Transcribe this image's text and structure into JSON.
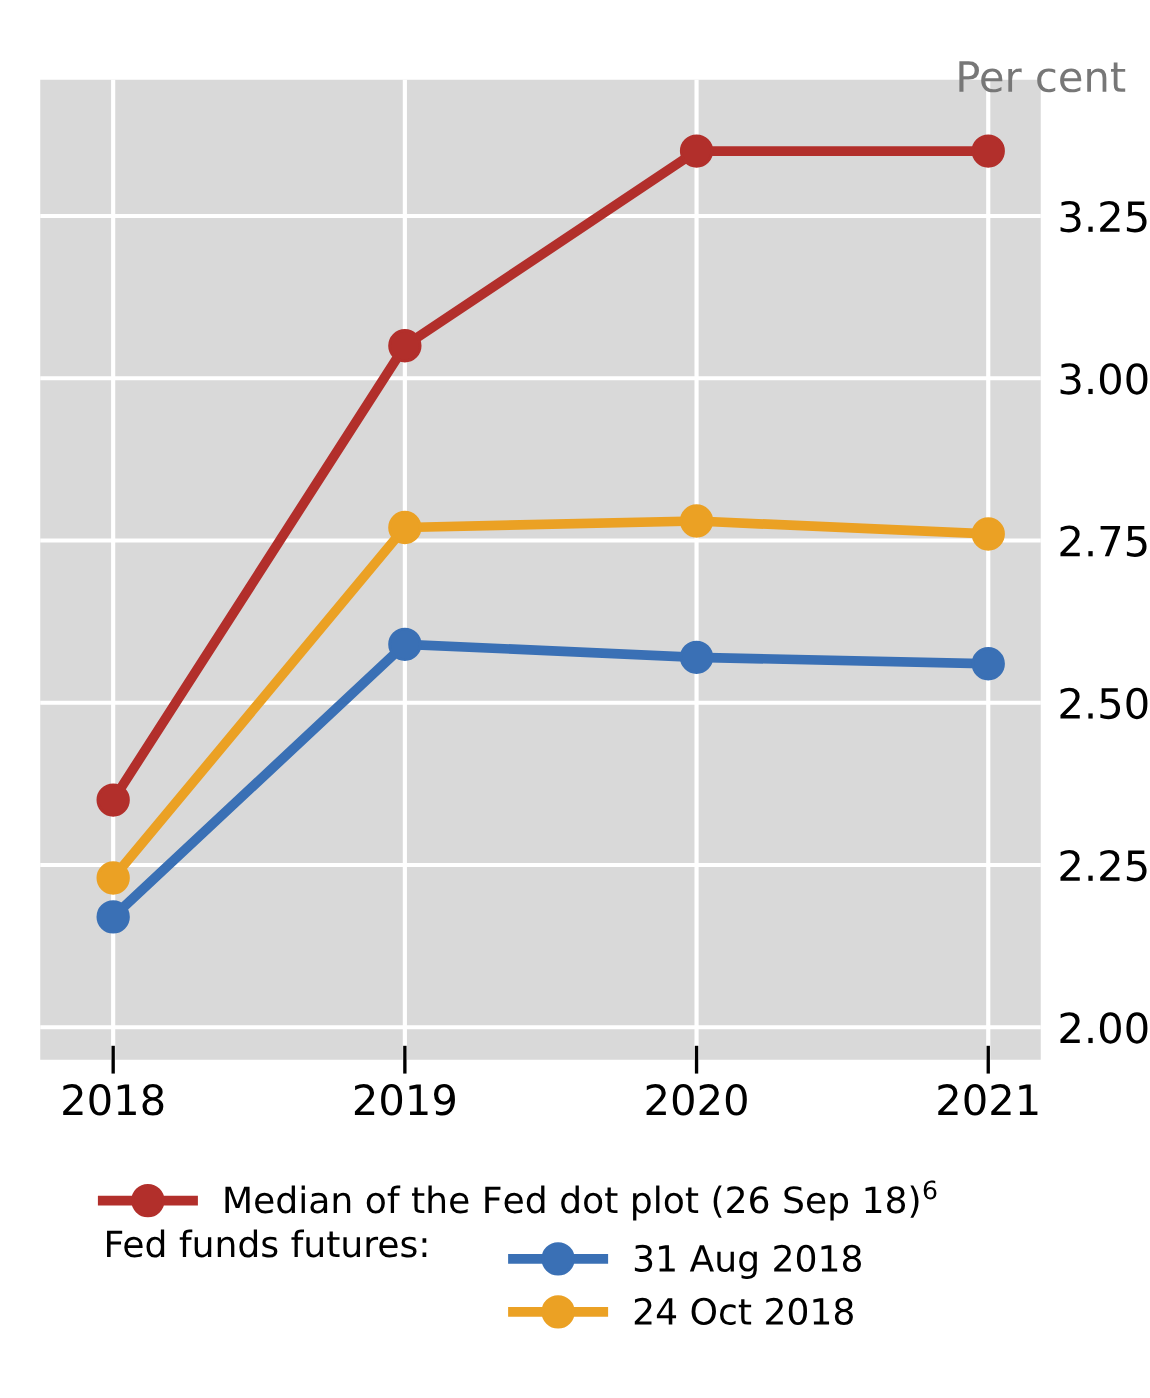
{
  "chart_data": {
    "type": "line",
    "ylabel": "Per cent",
    "legend_title": "Fed funds futures:",
    "categories": [
      "2018",
      "2019",
      "2020",
      "2021"
    ],
    "series": [
      {
        "name": "Median of the Fed dot plot (26 Sep 18)$^{6}$",
        "color": "#b22f2b",
        "values": [
          2.35,
          3.05,
          3.35,
          3.35
        ]
      },
      {
        "name": "31 Aug 2018",
        "color": "#3a70b5",
        "values": [
          2.17,
          2.59,
          2.57,
          2.56
        ]
      },
      {
        "name": "24 Oct 2018",
        "color": "#eba124",
        "values": [
          2.23,
          2.77,
          2.78,
          2.76
        ]
      }
    ],
    "ylim": [
      1.95,
      3.46
    ],
    "yticks": [
      {
        "value": 2.0,
        "label": "2.00"
      },
      {
        "value": 2.25,
        "label": "2.25"
      },
      {
        "value": 2.5,
        "label": "2.50"
      },
      {
        "value": 2.75,
        "label": "2.75"
      },
      {
        "value": 3.0,
        "label": "3.00"
      },
      {
        "value": 3.25,
        "label": "3.25"
      }
    ],
    "grid": true,
    "legend": "bottom",
    "marker": "circle",
    "line_style": "solid"
  }
}
